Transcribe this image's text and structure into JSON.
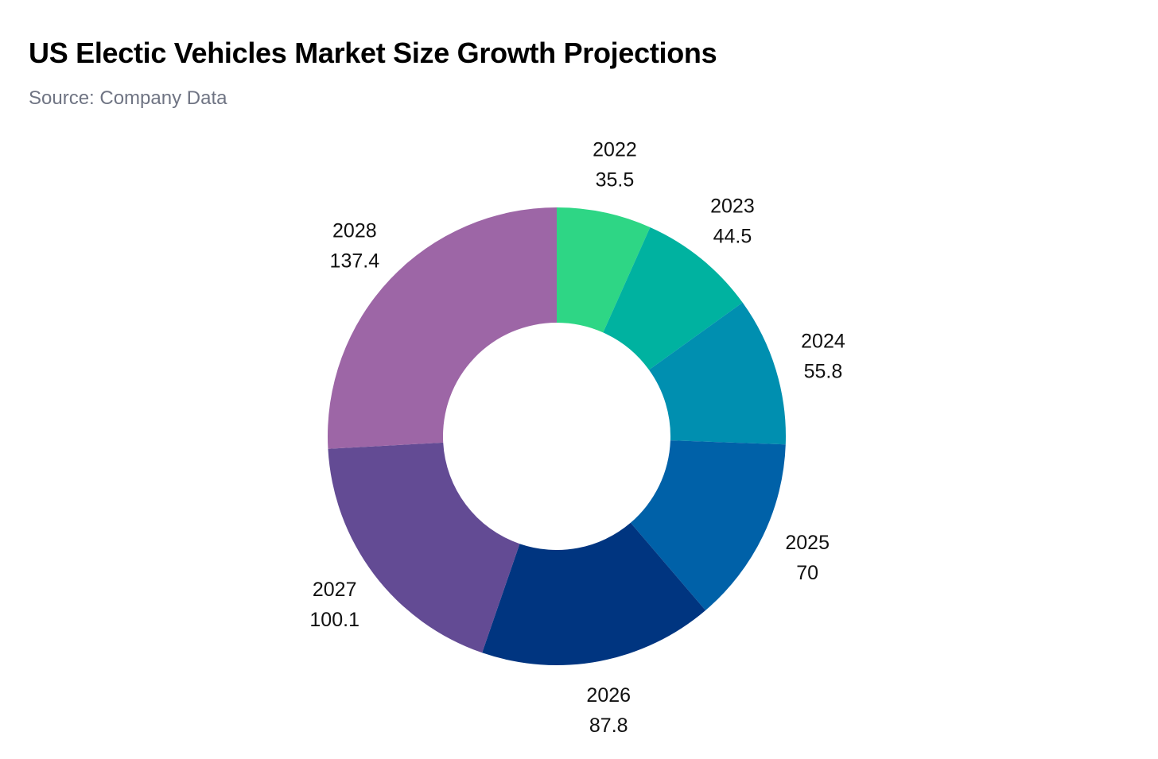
{
  "chart_data": {
    "type": "pie",
    "donut": true,
    "title": "US Electic Vehicles Market Size Growth Projections",
    "subtitle": "Source: Company Data",
    "categories": [
      "2022",
      "2023",
      "2024",
      "2025",
      "2026",
      "2027",
      "2028"
    ],
    "values": [
      35.5,
      44.5,
      55.8,
      70,
      87.8,
      100.1,
      137.4
    ],
    "value_labels": [
      "35.5",
      "44.5",
      "55.8",
      "70",
      "87.8",
      "100.1",
      "137.4"
    ],
    "colors": [
      "#2ed685",
      "#00b2a0",
      "#008fb0",
      "#0061a8",
      "#003580",
      "#634b94",
      "#9d66a6"
    ],
    "start": "top",
    "direction": "clockwise"
  }
}
